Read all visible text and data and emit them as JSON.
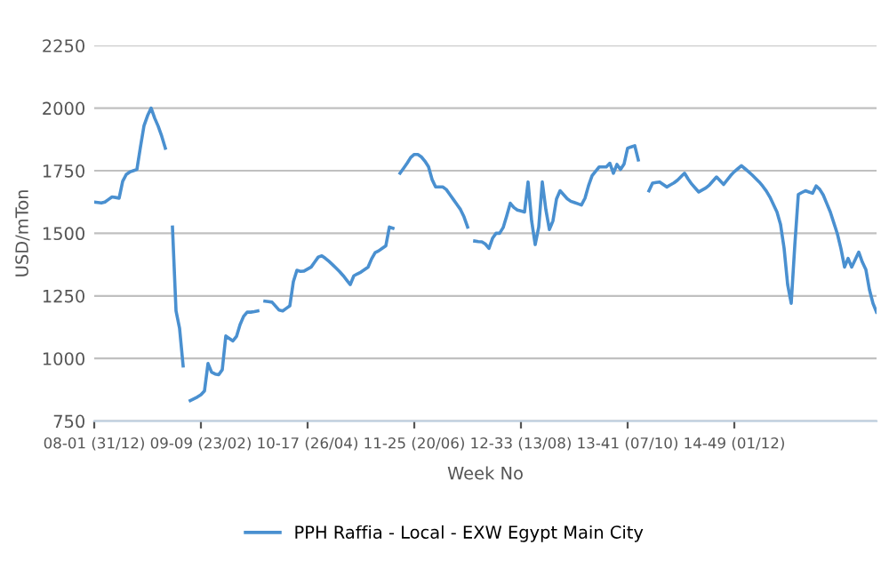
{
  "chart_data": {
    "type": "line",
    "xlabel": "Week No",
    "ylabel": "USD/mTon",
    "categories": [
      "08-01 (31/12)",
      null,
      null,
      null,
      null,
      null,
      null,
      null,
      null,
      null,
      null,
      null,
      null,
      null,
      null,
      null,
      null,
      null,
      null,
      null,
      null,
      null,
      null,
      null,
      null,
      null,
      null,
      null,
      null,
      null,
      "09-09 (23/02)",
      null,
      null,
      null,
      null,
      null,
      null,
      null,
      null,
      null,
      null,
      null,
      null,
      null,
      null,
      null,
      null,
      null,
      null,
      null,
      null,
      null,
      null,
      null,
      null,
      null,
      null,
      null,
      null,
      null,
      "10-17 (26/04)",
      null,
      null,
      null,
      null,
      null,
      null,
      null,
      null,
      null,
      null,
      null,
      null,
      null,
      null,
      null,
      null,
      null,
      null,
      null,
      null,
      null,
      null,
      null,
      null,
      null,
      null,
      null,
      null,
      null,
      "11-25 (20/06)",
      null,
      null,
      null,
      null,
      null,
      null,
      null,
      null,
      null,
      null,
      null,
      null,
      null,
      null,
      null,
      null,
      null,
      null,
      null,
      null,
      null,
      null,
      null,
      null,
      null,
      null,
      null,
      null,
      null,
      "12-33 (13/08)",
      null,
      null,
      null,
      null,
      null,
      null,
      null,
      null,
      null,
      null,
      null,
      null,
      null,
      null,
      null,
      null,
      null,
      null,
      null,
      null,
      null,
      null,
      null,
      null,
      null,
      null,
      null,
      null,
      null,
      "13-41 (07/10)",
      null,
      null,
      null,
      null,
      null,
      null,
      null,
      null,
      null,
      null,
      null,
      null,
      null,
      null,
      null,
      null,
      null,
      null,
      null,
      null,
      null,
      null,
      null,
      null,
      null,
      null,
      null,
      null,
      null,
      "14-49 (01/12)",
      null,
      null,
      null,
      null,
      null,
      null,
      null,
      null,
      null,
      null,
      null,
      null,
      null,
      null,
      null,
      null,
      null,
      null,
      null,
      null,
      null,
      null,
      null,
      null,
      null,
      null,
      null,
      null,
      null,
      null,
      null,
      null,
      null,
      null,
      null,
      null,
      null,
      null,
      null,
      null
    ],
    "series": [
      {
        "name": "PPH Raffia - Local - EXW Egypt Main City",
        "color": "#4a90d0",
        "values": [
          1625,
          1623,
          1621,
          1625,
          1635,
          1645,
          1643,
          1640,
          1708,
          1735,
          1745,
          1750,
          1755,
          1845,
          1930,
          1970,
          2000,
          1960,
          1927,
          1887,
          1840,
          null,
          1525,
          1190,
          1120,
          970,
          null,
          832,
          839,
          846,
          855,
          870,
          980,
          945,
          938,
          935,
          955,
          1090,
          1080,
          1070,
          1088,
          1135,
          1168,
          1185,
          1185,
          1187,
          1190,
          null,
          1229,
          1227,
          1225,
          1209,
          1193,
          1190,
          1200,
          1210,
          1307,
          1352,
          1348,
          1349,
          1357,
          1365,
          1385,
          1405,
          1410,
          1400,
          1388,
          1375,
          1361,
          1347,
          1331,
          1313,
          1295,
          1330,
          1338,
          1345,
          1355,
          1365,
          1398,
          1423,
          1430,
          1440,
          1450,
          1525,
          1520,
          null,
          1740,
          1760,
          1780,
          1803,
          1815,
          1815,
          1805,
          1788,
          1766,
          1715,
          1685,
          1685,
          1685,
          1675,
          1655,
          1635,
          1615,
          1595,
          1565,
          1525,
          null,
          1469,
          1467,
          1466,
          1457,
          1440,
          1480,
          1500,
          1500,
          1523,
          1570,
          1620,
          1603,
          1593,
          1589,
          1585,
          1705,
          1550,
          1455,
          1525,
          1705,
          1595,
          1515,
          1550,
          1637,
          1670,
          1654,
          1638,
          1628,
          1623,
          1618,
          1613,
          1640,
          1690,
          1730,
          1748,
          1765,
          1765,
          1765,
          1780,
          1740,
          1775,
          1755,
          1777,
          1840,
          1845,
          1850,
          1793,
          null,
          null,
          1670,
          1700,
          1703,
          1705,
          1695,
          1685,
          1693,
          1701,
          1712,
          1726,
          1740,
          1717,
          1697,
          1681,
          1665,
          1673,
          1681,
          1693,
          1709,
          1725,
          1710,
          1695,
          1713,
          1731,
          1746,
          1758,
          1770,
          1758,
          1746,
          1733,
          1719,
          1705,
          1688,
          1669,
          1645,
          1615,
          1585,
          1535,
          1440,
          1295,
          1220,
          1450,
          1655,
          1663,
          1670,
          1665,
          1660,
          1689,
          1676,
          1653,
          1619,
          1585,
          1541,
          1497,
          1438,
          1365,
          1400,
          1365,
          1395,
          1425,
          1385,
          1355,
          1275,
          1220,
          1185
        ]
      }
    ],
    "ylim": [
      750,
      2250
    ],
    "yticks": [
      750,
      1000,
      1250,
      1500,
      1750,
      2000,
      2250
    ],
    "grid": "y",
    "legend": "bottom",
    "marker": "none",
    "line_style": "solid"
  }
}
